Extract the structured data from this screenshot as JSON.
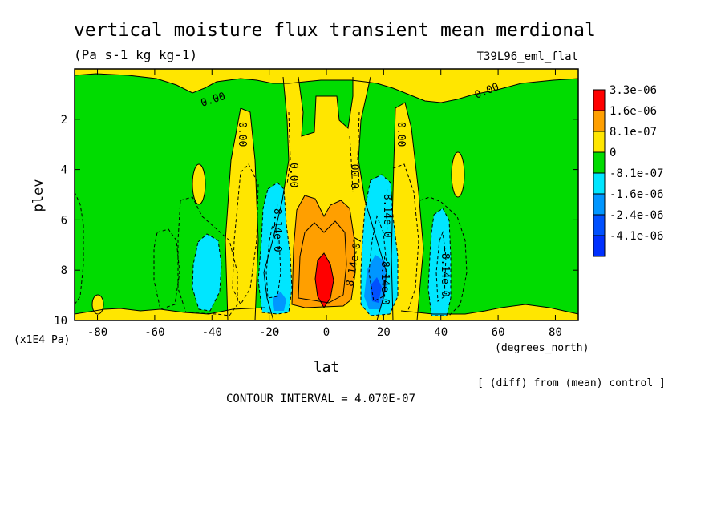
{
  "chart_data": {
    "type": "contour",
    "title": "vertical moisture flux transient mean merdional",
    "units": "(Pa s-1 kg kg-1)",
    "experiment": "T39L96_eml_flat",
    "xlabel": "lat",
    "xunits": "(degrees_north)",
    "ylabel": "plev",
    "yunits": "(x1E4 Pa)",
    "xlim": [
      -88,
      88
    ],
    "ylim": [
      10,
      0
    ],
    "x_ticks": [
      -80,
      -60,
      -40,
      -20,
      0,
      20,
      40,
      60,
      80
    ],
    "x_tick_labels": [
      "-80",
      "-60",
      "-40",
      "-20",
      "0",
      "20",
      "40",
      "60",
      "80"
    ],
    "y_ticks": [
      2,
      4,
      6,
      8,
      10
    ],
    "y_tick_labels": [
      "2",
      "4",
      "6",
      "8",
      "10"
    ],
    "levels": [
      {
        "label": "3.3e-06",
        "color": "#ff0000"
      },
      {
        "label": "1.6e-06",
        "color": "#ff9f00"
      },
      {
        "label": "8.1e-07",
        "color": "#ffe600"
      },
      {
        "label": "0",
        "color": "#00dc00"
      },
      {
        "label": "-8.1e-07",
        "color": "#00e6ff"
      },
      {
        "label": "-1.6e-06",
        "color": "#0096ff"
      },
      {
        "label": "-2.4e-06",
        "color": "#0050ff"
      },
      {
        "label": "-4.1e-06",
        "color": "#0030ff"
      }
    ],
    "contour_labels": [
      "0.00",
      "0.00",
      "0.00",
      "0.00",
      "0.00",
      "0.00",
      "8.14e-07",
      "-8.14e-0",
      "-8.14e-0",
      "-8.14e-0",
      "-8.14e-0"
    ],
    "footer_note": "[ (diff) from (mean) control ]",
    "contour_interval": "CONTOUR INTERVAL = 4.070E-07"
  }
}
